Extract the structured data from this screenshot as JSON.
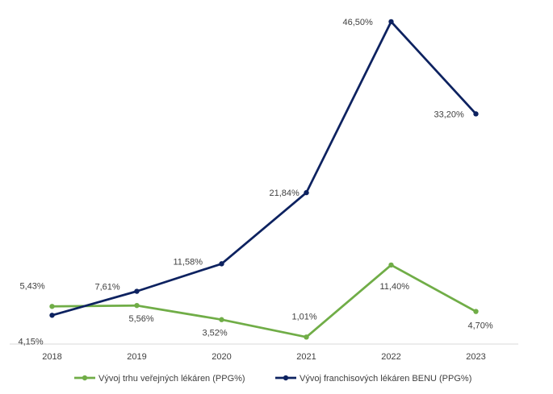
{
  "chart_data": {
    "type": "line",
    "x": [
      "2018",
      "2019",
      "2020",
      "2021",
      "2022",
      "2023"
    ],
    "series": [
      {
        "name": "Vývoj trhu veřejných lékáren (PPG%)",
        "color": "#70ad47",
        "values": [
          5.43,
          5.56,
          3.52,
          1.01,
          11.4,
          4.7
        ],
        "labels": [
          "5,43%",
          "5,56%",
          "3,52%",
          "1,01%",
          "11,40%",
          "4,70%"
        ]
      },
      {
        "name": "Vývoj franchisových lékáren BENU (PPG%)",
        "color": "#0d2260",
        "values": [
          4.15,
          7.61,
          11.58,
          21.84,
          46.5,
          33.2
        ],
        "labels": [
          "4,15%",
          "7,61%",
          "11,58%",
          "21,84%",
          "46,50%",
          "33,20%"
        ]
      }
    ],
    "ylim": [
      0,
      48
    ],
    "grid": false,
    "legend": "bottom"
  }
}
